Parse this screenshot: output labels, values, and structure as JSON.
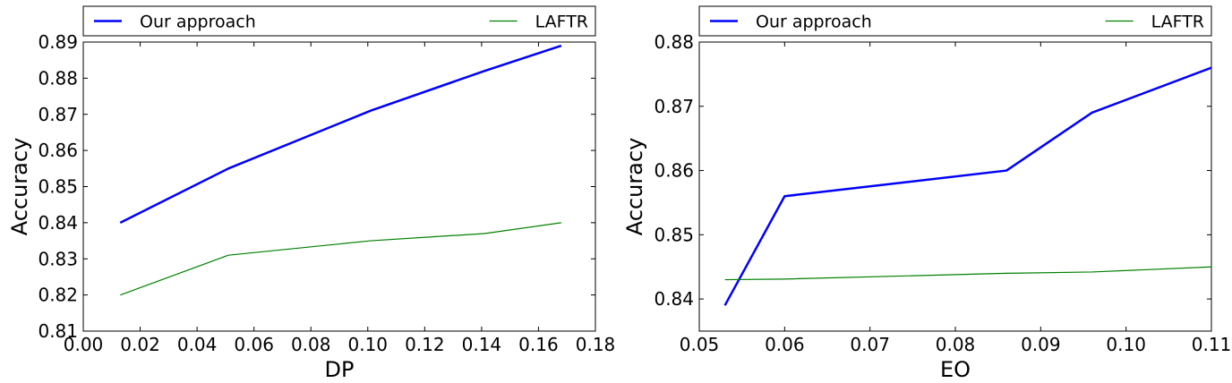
{
  "chart_data": [
    {
      "type": "line",
      "title": "",
      "xlabel": "DP",
      "ylabel": "Accuracy",
      "xlim": [
        0.0,
        0.18
      ],
      "ylim": [
        0.81,
        0.89
      ],
      "xticks": [
        "0.00",
        "0.02",
        "0.04",
        "0.06",
        "0.08",
        "0.10",
        "0.12",
        "0.14",
        "0.16",
        "0.18"
      ],
      "yticks": [
        "0.81",
        "0.82",
        "0.83",
        "0.84",
        "0.85",
        "0.86",
        "0.87",
        "0.88",
        "0.89"
      ],
      "grid": false,
      "legend_position": "above plot",
      "series": [
        {
          "name": "Our approach",
          "color": "#0000ff",
          "width": "thick",
          "x": [
            0.013,
            0.051,
            0.101,
            0.141,
            0.168
          ],
          "y": [
            0.84,
            0.855,
            0.871,
            0.882,
            0.889
          ]
        },
        {
          "name": "LAFTR",
          "color": "#008000",
          "width": "thin",
          "x": [
            0.013,
            0.051,
            0.101,
            0.141,
            0.168
          ],
          "y": [
            0.82,
            0.831,
            0.835,
            0.837,
            0.84
          ]
        }
      ]
    },
    {
      "type": "line",
      "title": "",
      "xlabel": "EO",
      "ylabel": "Accuracy",
      "xlim": [
        0.05,
        0.11
      ],
      "ylim": [
        0.835,
        0.88
      ],
      "xticks": [
        "0.05",
        "0.06",
        "0.07",
        "0.08",
        "0.09",
        "0.10",
        "0.11"
      ],
      "yticks": [
        "0.84",
        "0.85",
        "0.86",
        "0.87",
        "0.88"
      ],
      "grid": false,
      "legend_position": "above plot",
      "series": [
        {
          "name": "Our approach",
          "color": "#0000ff",
          "width": "thick",
          "x": [
            0.053,
            0.06,
            0.086,
            0.096,
            0.11
          ],
          "y": [
            0.839,
            0.856,
            0.86,
            0.869,
            0.876
          ]
        },
        {
          "name": "LAFTR",
          "color": "#008000",
          "width": "thin",
          "x": [
            0.053,
            0.06,
            0.086,
            0.096,
            0.11
          ],
          "y": [
            0.843,
            0.8431,
            0.844,
            0.8442,
            0.845
          ]
        }
      ]
    }
  ]
}
